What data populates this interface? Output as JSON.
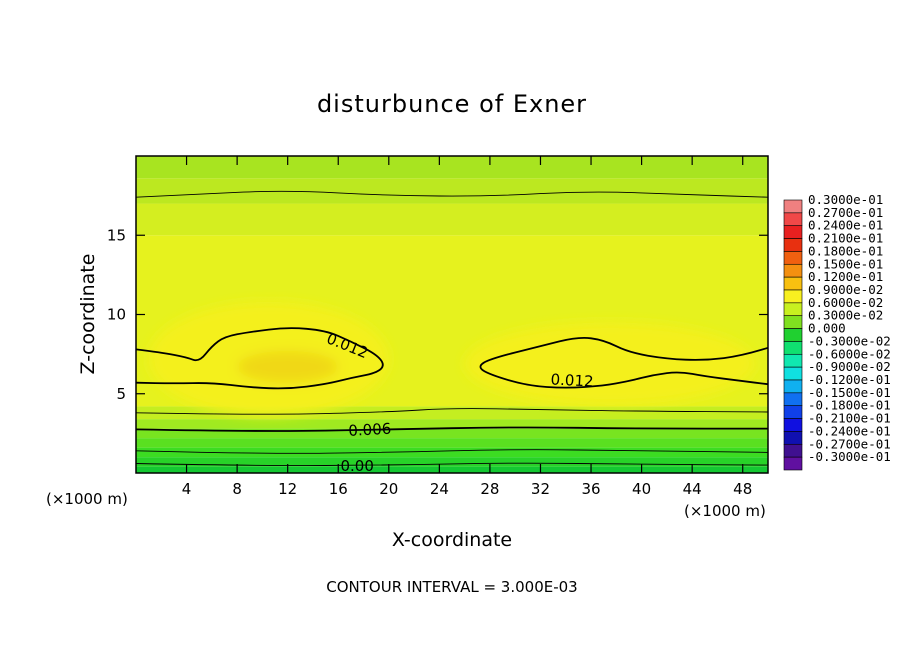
{
  "chart_data": {
    "type": "heatmap",
    "title": "disturbunce of Exner",
    "xlabel": "X-coordinate",
    "ylabel": "Z-coordinate",
    "x_unit": "(×1000 m)",
    "z_unit": "(×1000 m)",
    "xlim": [
      0,
      50
    ],
    "ylim": [
      0,
      20
    ],
    "x_ticks": [
      "4",
      "8",
      "12",
      "16",
      "20",
      "24",
      "28",
      "32",
      "36",
      "40",
      "44",
      "48"
    ],
    "y_ticks": [
      "5",
      "10",
      "15"
    ],
    "x_tick_values": [
      4,
      8,
      12,
      16,
      20,
      24,
      28,
      32,
      36,
      40,
      44,
      48
    ],
    "y_tick_values": [
      5,
      10,
      15
    ],
    "contour_interval_label": "CONTOUR INTERVAL = 3.000E-03",
    "contour_labels": [
      {
        "text": "0.012",
        "x": 16.7,
        "z": 8.0,
        "angle": 22
      },
      {
        "text": "0.012",
        "x": 34.5,
        "z": 5.8,
        "angle": 3
      },
      {
        "text": "0.006",
        "x": 18.5,
        "z": 2.7,
        "angle": -3
      },
      {
        "text": "0.00",
        "x": 17.5,
        "z": 0.4,
        "angle": 0
      }
    ],
    "contour_lines": [
      {
        "level": 0.0,
        "points": [
          [
            0,
            0.6
          ],
          [
            10,
            0.45
          ],
          [
            20,
            0.5
          ],
          [
            30,
            0.65
          ],
          [
            40,
            0.55
          ],
          [
            50,
            0.5
          ]
        ]
      },
      {
        "level": 0.003,
        "points": [
          [
            0,
            1.4
          ],
          [
            10,
            1.2
          ],
          [
            20,
            1.3
          ],
          [
            30,
            1.5
          ],
          [
            40,
            1.4
          ],
          [
            50,
            1.3
          ]
        ]
      },
      {
        "level": 0.006,
        "points": [
          [
            0,
            2.75
          ],
          [
            10,
            2.6
          ],
          [
            20,
            2.75
          ],
          [
            30,
            2.9
          ],
          [
            40,
            2.8
          ],
          [
            50,
            2.8
          ]
        ]
      },
      {
        "level": 0.009,
        "points": [
          [
            0,
            3.8
          ],
          [
            10,
            3.65
          ],
          [
            20,
            3.85
          ],
          [
            25,
            4.1
          ],
          [
            32,
            4.0
          ],
          [
            40,
            3.9
          ],
          [
            50,
            3.85
          ]
        ]
      },
      {
        "level": 0.012,
        "points": [
          [
            0,
            7.8
          ],
          [
            2,
            7.6
          ],
          [
            4,
            7.3
          ],
          [
            5,
            7.0
          ],
          [
            6,
            8.0
          ],
          [
            7,
            8.6
          ],
          [
            9,
            8.9
          ],
          [
            12,
            9.2
          ],
          [
            15,
            9.0
          ],
          [
            17,
            8.3
          ],
          [
            19,
            7.5
          ],
          [
            19.7,
            6.8
          ],
          [
            19,
            6.3
          ],
          [
            17,
            6.0
          ],
          [
            15,
            5.6
          ],
          [
            12,
            5.3
          ],
          [
            9,
            5.4
          ],
          [
            6,
            5.7
          ],
          [
            3,
            5.65
          ],
          [
            0,
            5.7
          ]
        ]
      },
      {
        "level": 0.012,
        "points": [
          [
            50,
            7.9
          ],
          [
            48,
            7.4
          ],
          [
            45,
            7.1
          ],
          [
            42,
            7.2
          ],
          [
            39,
            7.6
          ],
          [
            37,
            8.4
          ],
          [
            35,
            8.6
          ],
          [
            32,
            8.0
          ],
          [
            28,
            7.2
          ],
          [
            27,
            6.7
          ],
          [
            28,
            6.2
          ],
          [
            31,
            5.5
          ],
          [
            34,
            5.35
          ],
          [
            37,
            5.5
          ],
          [
            39,
            5.8
          ],
          [
            41,
            6.2
          ],
          [
            43,
            6.4
          ],
          [
            45,
            6.1
          ],
          [
            48,
            5.8
          ],
          [
            50,
            5.6
          ]
        ]
      },
      {
        "level": 0.009,
        "points": [
          [
            0,
            17.4
          ],
          [
            5,
            17.6
          ],
          [
            12,
            17.85
          ],
          [
            20,
            17.5
          ],
          [
            28,
            17.45
          ],
          [
            36,
            17.8
          ],
          [
            44,
            17.55
          ],
          [
            50,
            17.4
          ]
        ]
      }
    ],
    "legend": {
      "labels": [
        "0.3000e-01",
        "0.2700e-01",
        "0.2400e-01",
        "0.2100e-01",
        "0.1800e-01",
        "0.1500e-01",
        "0.1200e-01",
        "0.9000e-02",
        "0.6000e-02",
        "0.3000e-02",
        "0.000",
        "-0.3000e-02",
        "-0.6000e-02",
        "-0.9000e-02",
        "-0.1200e-01",
        "-0.1500e-01",
        "-0.1800e-01",
        "-0.2100e-01",
        "-0.2400e-01",
        "-0.2700e-01",
        "-0.3000e-01"
      ],
      "colors": [
        "#f08080",
        "#f04848",
        "#e82020",
        "#e83010",
        "#f06010",
        "#f49010",
        "#f8c010",
        "#f8f020",
        "#c8f020",
        "#80e020",
        "#20d030",
        "#10e070",
        "#10e8b0",
        "#10e0e0",
        "#10b0f0",
        "#1070f0",
        "#1040e8",
        "#1010e0",
        "#1010b0",
        "#401090",
        "#6010a0"
      ]
    },
    "field_bands": [
      {
        "z0": 0.0,
        "z1": 0.4,
        "color": "#14c832"
      },
      {
        "z0": 0.4,
        "z1": 1.0,
        "color": "#28d228"
      },
      {
        "z0": 1.0,
        "z1": 1.6,
        "color": "#3cdc22"
      },
      {
        "z0": 1.6,
        "z1": 2.2,
        "color": "#5ae020"
      },
      {
        "z0": 2.2,
        "z1": 2.8,
        "color": "#78e420"
      },
      {
        "z0": 2.8,
        "z1": 3.4,
        "color": "#a0ea20"
      },
      {
        "z0": 3.4,
        "z1": 4.2,
        "color": "#c4ee20"
      },
      {
        "z0": 4.2,
        "z1": 15.0,
        "color": "#e6f21e"
      },
      {
        "z0": 15.0,
        "z1": 17.0,
        "color": "#d4ee20"
      },
      {
        "z0": 17.0,
        "z1": 18.6,
        "color": "#bce820"
      },
      {
        "z0": 18.6,
        "z1": 20.0,
        "color": "#a8e420"
      }
    ],
    "field_highlights": [
      {
        "cx": 10.5,
        "cz": 7.2,
        "rx": 9.5,
        "rz": 3.6,
        "color": "#f4f01c"
      },
      {
        "cx": 37.5,
        "cz": 6.9,
        "rx": 11.5,
        "rz": 2.6,
        "color": "#f4f01c"
      },
      {
        "cx": 12.0,
        "cz": 6.7,
        "rx": 4.0,
        "rz": 1.0,
        "color": "#f0d818"
      }
    ]
  }
}
